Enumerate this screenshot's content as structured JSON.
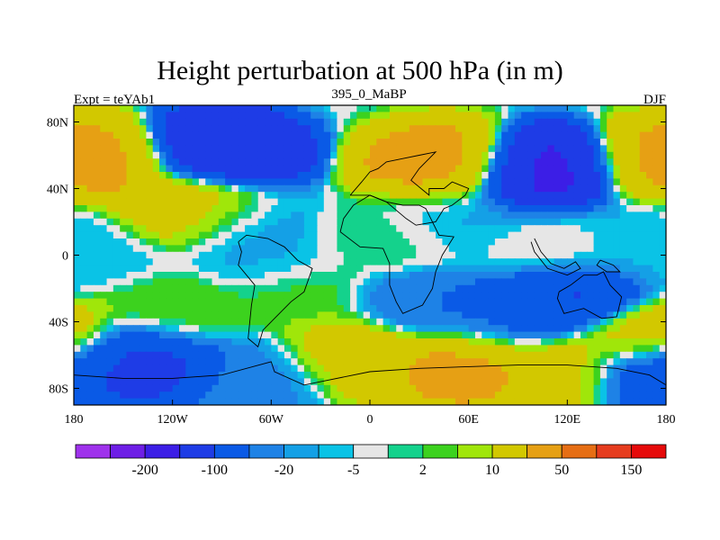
{
  "chart_data": {
    "type": "heatmap",
    "title": "Height perturbation at 500 hPa (in m)",
    "subtitle_left": "Expt = teYAb1",
    "subtitle_center": "395_0_MaBP",
    "subtitle_right": "DJF",
    "x_ticks": [
      {
        "value": -180,
        "label": "180"
      },
      {
        "value": -120,
        "label": "120W"
      },
      {
        "value": -60,
        "label": "60W"
      },
      {
        "value": 0,
        "label": "0"
      },
      {
        "value": 60,
        "label": "60E"
      },
      {
        "value": 120,
        "label": "120E"
      },
      {
        "value": 180,
        "label": "180"
      }
    ],
    "y_ticks": [
      {
        "value": 80,
        "label": "80N"
      },
      {
        "value": 40,
        "label": "40N"
      },
      {
        "value": 0,
        "label": "0"
      },
      {
        "value": -40,
        "label": "40S"
      },
      {
        "value": -80,
        "label": "80S"
      }
    ],
    "xlim": [
      -180,
      180
    ],
    "ylim": [
      -90,
      90
    ],
    "colorbar": {
      "colors": [
        "#9f32ec",
        "#6e1ee6",
        "#3c1ee6",
        "#1e3ce6",
        "#0a5ae6",
        "#1e82e6",
        "#14a0e6",
        "#0ac3e6",
        "#e6e6e6",
        "#14d28c",
        "#3cd21e",
        "#a0e60a",
        "#d2c800",
        "#e6a014",
        "#e66e14",
        "#e63c1e",
        "#e60a0a"
      ],
      "labels": [
        {
          "after_index": 1,
          "text": "-200"
        },
        {
          "after_index": 3,
          "text": "-100"
        },
        {
          "after_index": 5,
          "text": "-20"
        },
        {
          "after_index": 7,
          "text": "-5"
        },
        {
          "after_index": 9,
          "text": "2"
        },
        {
          "after_index": 11,
          "text": "10"
        },
        {
          "after_index": 13,
          "text": "50"
        },
        {
          "after_index": 15,
          "text": "150"
        }
      ]
    },
    "anomaly_centers": [
      {
        "lon": -165,
        "lat": 55,
        "value": 55
      },
      {
        "lon": 178,
        "lat": 55,
        "value": 55
      },
      {
        "lon": -90,
        "lat": 62,
        "value": -90
      },
      {
        "lon": -110,
        "lat": 30,
        "value": 45
      },
      {
        "lon": -80,
        "lat": 20,
        "value": -8
      },
      {
        "lon": 44,
        "lat": 55,
        "value": 60
      },
      {
        "lon": 108,
        "lat": 50,
        "value": -110
      },
      {
        "lon": 50,
        "lat": 20,
        "value": -6
      },
      {
        "lon": 110,
        "lat": 5,
        "value": 1
      },
      {
        "lon": -170,
        "lat": 0,
        "value": -4
      },
      {
        "lon": -60,
        "lat": -2,
        "value": -6
      },
      {
        "lon": 10,
        "lat": 8,
        "value": 5
      },
      {
        "lon": -120,
        "lat": -35,
        "value": 10
      },
      {
        "lon": -140,
        "lat": -62,
        "value": -60
      },
      {
        "lon": -60,
        "lat": -70,
        "value": -15
      },
      {
        "lon": -40,
        "lat": -25,
        "value": 8
      },
      {
        "lon": -10,
        "lat": -60,
        "value": 45
      },
      {
        "lon": 30,
        "lat": -30,
        "value": -20
      },
      {
        "lon": 80,
        "lat": -40,
        "value": -25
      },
      {
        "lon": 120,
        "lat": -28,
        "value": -55
      },
      {
        "lon": 60,
        "lat": -65,
        "value": 60
      },
      {
        "lon": 120,
        "lat": -70,
        "value": 40
      },
      {
        "lon": 165,
        "lat": -50,
        "value": 40
      },
      {
        "lon": 165,
        "lat": -70,
        "value": -50
      },
      {
        "lon": 165,
        "lat": 15,
        "value": -5
      }
    ]
  }
}
